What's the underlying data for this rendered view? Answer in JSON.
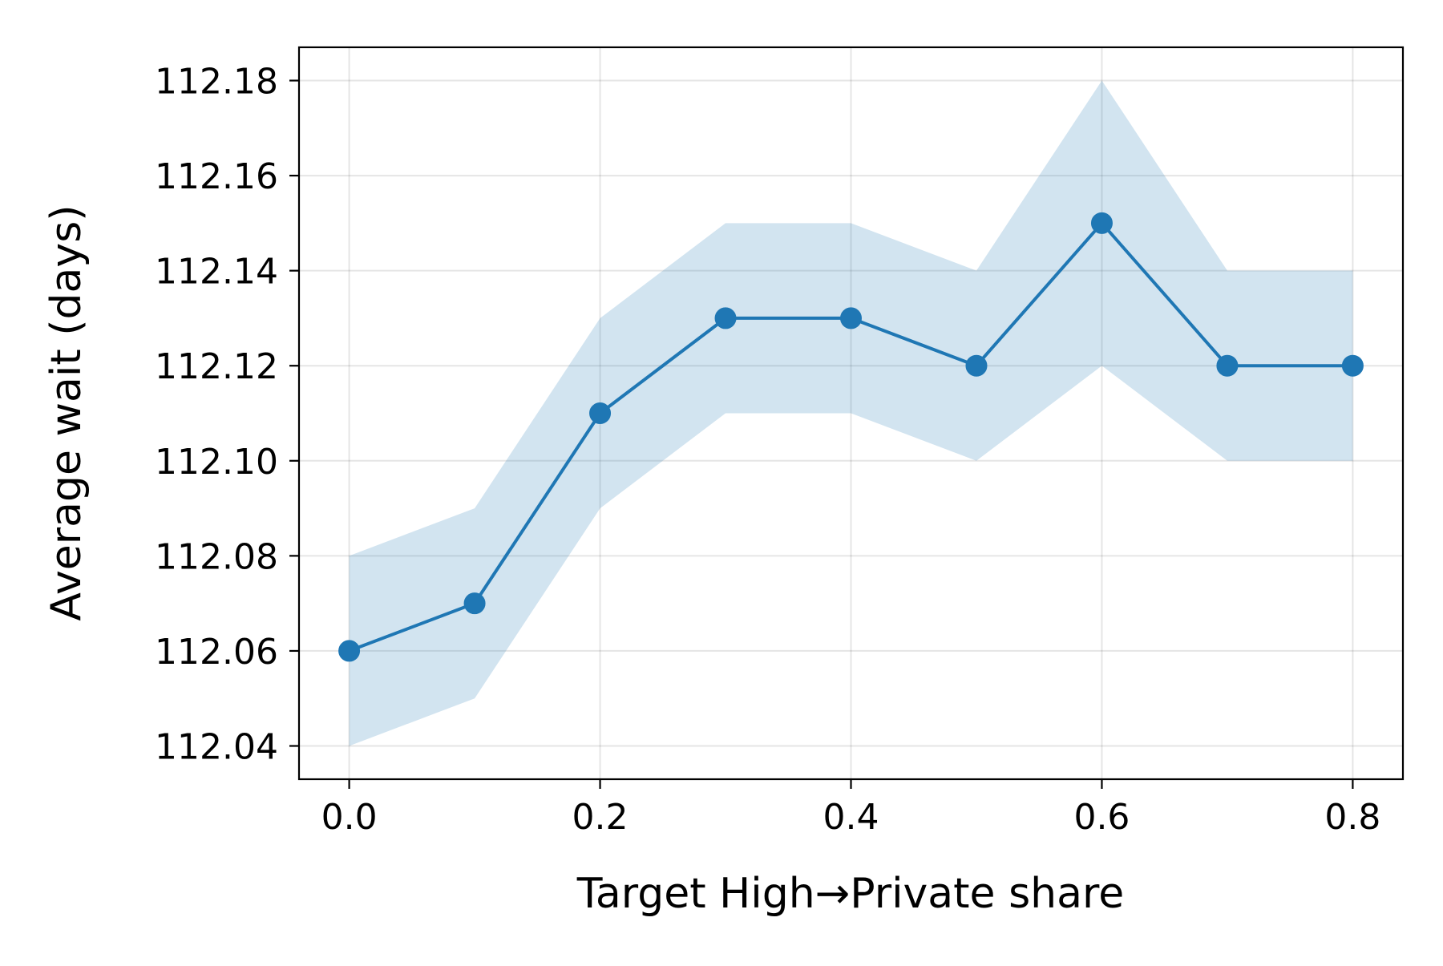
{
  "chart_data": {
    "type": "line",
    "title": "",
    "xlabel": "Target High→Private share",
    "ylabel": "Average wait (days)",
    "x": [
      0.0,
      0.1,
      0.2,
      0.3,
      0.4,
      0.5,
      0.6,
      0.7,
      0.8
    ],
    "series": [
      {
        "values": [
          112.06,
          112.07,
          112.11,
          112.13,
          112.13,
          112.12,
          112.15,
          112.12,
          112.12
        ],
        "lower": [
          112.04,
          112.05,
          112.09,
          112.11,
          112.11,
          112.1,
          112.12,
          112.1,
          112.1
        ],
        "upper": [
          112.08,
          112.09,
          112.13,
          112.15,
          112.15,
          112.14,
          112.18,
          112.14,
          112.14
        ],
        "color": "#1f77b4",
        "band_color": "#1f77b4",
        "band_opacity": 0.2,
        "marker": "circle"
      }
    ],
    "xlim": [
      -0.04,
      0.84
    ],
    "ylim": [
      112.033,
      112.187
    ],
    "xticks": [
      "0.0",
      "0.2",
      "0.4",
      "0.6",
      "0.8"
    ],
    "yticks": [
      "112.04",
      "112.06",
      "112.08",
      "112.10",
      "112.12",
      "112.14",
      "112.16",
      "112.18"
    ],
    "grid": true,
    "legend": false
  }
}
